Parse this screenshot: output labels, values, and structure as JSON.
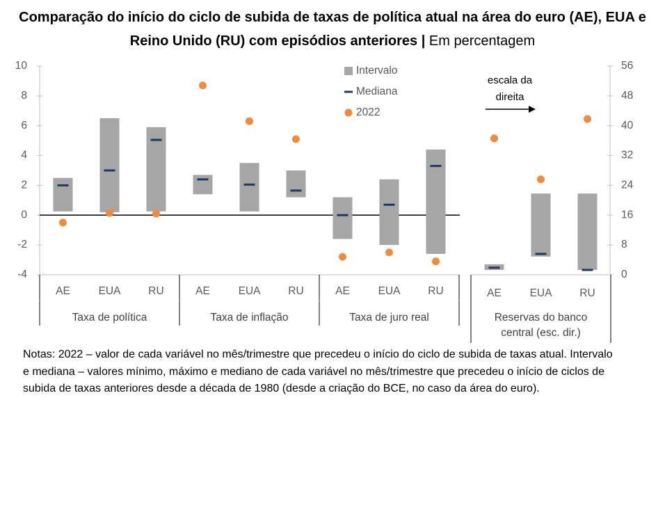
{
  "title": "Comparação do início do ciclo de subida de taxas de política atual na área do euro (AE), EUA e Reino Unido (RU) com episódios anteriores |",
  "subtitle": "Em percentagem",
  "notes": "Notas: 2022 – valor de cada variável no mês/trimestre que precedeu o início do ciclo de subida de taxas atual. Intervalo e mediana – valores mínimo, máximo e mediano de cada variável no mês/trimestre que precedeu o início de ciclos de subida de taxas anteriores desde a década de 1980 (desde a criação do BCE, no caso da área do euro).",
  "chart_data": [
    {
      "type": "range",
      "categories": [
        "AE",
        "EUA",
        "RU",
        "AE",
        "EUA",
        "RU",
        "AE",
        "EUA",
        "RU"
      ],
      "groups": [
        "Taxa de política",
        "Taxa de inflação",
        "Taxa de juro real"
      ],
      "ylim": [
        -4,
        10
      ],
      "yticks": [
        -4,
        -2,
        0,
        2,
        4,
        6,
        8,
        10
      ],
      "series": [
        {
          "name": "Intervalo",
          "mark": "range",
          "color": "#a6a6a6",
          "low": [
            0.25,
            0.2,
            0.25,
            1.4,
            0.25,
            1.2,
            -1.6,
            -2.0,
            -2.6
          ],
          "high": [
            2.5,
            6.5,
            5.9,
            2.7,
            3.5,
            3.0,
            1.2,
            2.4,
            4.4
          ]
        },
        {
          "name": "Mediana",
          "mark": "dash",
          "color": "#1f3864",
          "values": [
            2.0,
            3.0,
            5.05,
            2.4,
            2.05,
            1.65,
            0.0,
            0.7,
            3.3
          ]
        },
        {
          "name": "2022",
          "mark": "dot",
          "color": "#f08a3c",
          "values": [
            -0.5,
            0.15,
            0.1,
            8.7,
            6.3,
            5.1,
            -2.8,
            -2.5,
            -3.1
          ]
        }
      ]
    },
    {
      "type": "range",
      "categories": [
        "AE",
        "EUA",
        "RU"
      ],
      "groups": [
        "Reservas do banco central (esc. dir.)"
      ],
      "annotation": "escala da direita",
      "y2lim": [
        0,
        56
      ],
      "y2ticks": [
        0,
        8,
        16,
        24,
        32,
        40,
        48,
        56
      ],
      "series": [
        {
          "axis": "y2",
          "mark": "range",
          "color": "#a6a6a6",
          "low": [
            1.3,
            4.9,
            1.3
          ],
          "high": [
            2.8,
            21.8,
            21.8
          ]
        },
        {
          "axis": "y2",
          "mark": "dash",
          "color": "#1f3864",
          "values": [
            1.9,
            5.6,
            1.3
          ]
        },
        {
          "axis": "y2",
          "mark": "dot",
          "color": "#f08a3c",
          "values": [
            36.6,
            25.6,
            41.8
          ]
        }
      ]
    }
  ]
}
